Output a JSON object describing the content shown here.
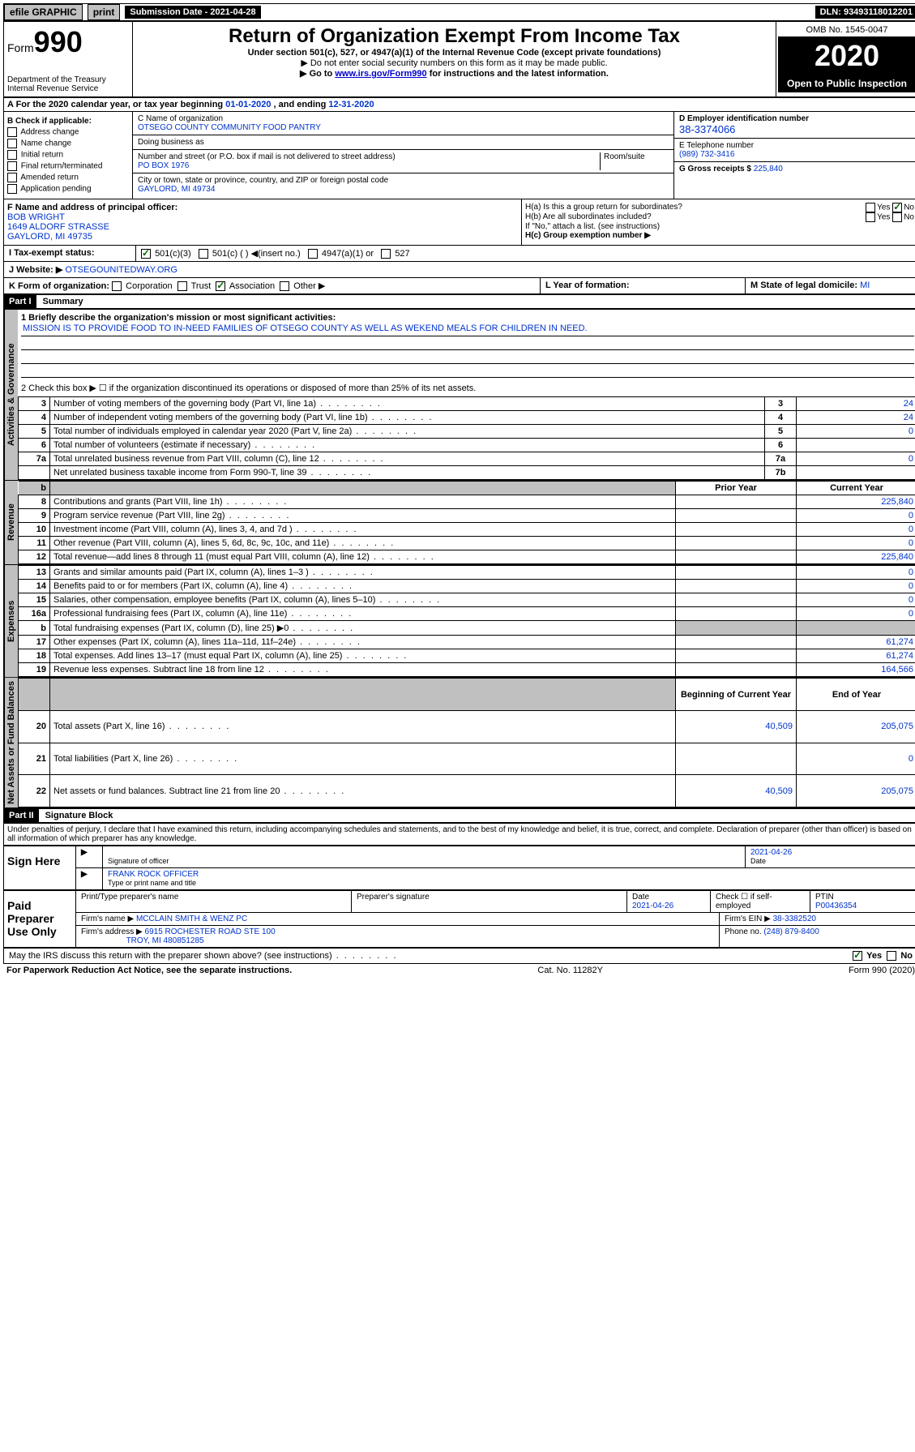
{
  "topbar": {
    "efile": "efile GRAPHIC",
    "print": "print",
    "submission": "Submission Date - 2021-04-28",
    "dln": "DLN: 93493118012201"
  },
  "header": {
    "form_prefix": "Form",
    "form_number": "990",
    "title": "Return of Organization Exempt From Income Tax",
    "subtitle": "Under section 501(c), 527, or 4947(a)(1) of the Internal Revenue Code (except private foundations)",
    "note1": "▶ Do not enter social security numbers on this form as it may be made public.",
    "note2_pre": "▶ Go to ",
    "note2_link": "www.irs.gov/Form990",
    "note2_post": " for instructions and the latest information.",
    "dept": "Department of the Treasury\nInternal Revenue Service",
    "omb": "OMB No. 1545-0047",
    "year": "2020",
    "open": "Open to Public Inspection"
  },
  "sectionA": {
    "text_pre": "A For the 2020 calendar year, or tax year beginning ",
    "begin": "01-01-2020",
    "mid": " , and ending ",
    "end": "12-31-2020"
  },
  "checkB": {
    "label": "B Check if applicable:",
    "items": [
      "Address change",
      "Name change",
      "Initial return",
      "Final return/terminated",
      "Amended return",
      "Application pending"
    ]
  },
  "blockC": {
    "name_label": "C Name of organization",
    "name": "OTSEGO COUNTY COMMUNITY FOOD PANTRY",
    "dba_label": "Doing business as",
    "dba": "",
    "street_label": "Number and street (or P.O. box if mail is not delivered to street address)",
    "room_label": "Room/suite",
    "street": "PO BOX 1976",
    "city_label": "City or town, state or province, country, and ZIP or foreign postal code",
    "city": "GAYLORD, MI 49734"
  },
  "blockD": {
    "label": "D Employer identification number",
    "ein": "38-3374066"
  },
  "blockE": {
    "label": "E Telephone number",
    "phone": "(989) 732-3416"
  },
  "blockG": {
    "label": "G Gross receipts $ ",
    "amount": "225,840"
  },
  "blockF": {
    "label": "F Name and address of principal officer:",
    "name": "BOB WRIGHT",
    "street": "1649 ALDORF STRASSE",
    "city": "GAYLORD, MI  49735"
  },
  "blockH": {
    "ha": "H(a)  Is this a group return for subordinates?",
    "hb": "H(b)  Are all subordinates included?",
    "hb_note": "If \"No,\" attach a list. (see instructions)",
    "hc": "H(c)  Group exemption number ▶",
    "yes": "Yes",
    "no": "No"
  },
  "rowI": {
    "label": "I  Tax-exempt status:",
    "opt1": "501(c)(3)",
    "opt2": "501(c) (  ) ◀(insert no.)",
    "opt3": "4947(a)(1) or",
    "opt4": "527"
  },
  "rowJ": {
    "label": "J  Website: ▶",
    "value": "OTSEGOUNITEDWAY.ORG"
  },
  "rowK": {
    "label": "K Form of organization:",
    "opts": [
      "Corporation",
      "Trust",
      "Association",
      "Other ▶"
    ],
    "checked_idx": 2
  },
  "rowL": {
    "label": "L Year of formation:",
    "value": ""
  },
  "rowM": {
    "label": "M State of legal domicile: ",
    "value": "MI"
  },
  "part1": {
    "header": "Part I",
    "title": "Summary",
    "line1_label": "1  Briefly describe the organization's mission or most significant activities:",
    "mission": "MISSION IS TO PROVIDE FOOD TO IN-NEED FAMILIES OF OTSEGO COUNTY AS WELL AS WEKEND MEALS FOR CHILDREN IN NEED.",
    "line2": "2  Check this box ▶ ☐  if the organization discontinued its operations or disposed of more than 25% of its net assets.",
    "rows_gov": [
      {
        "n": "3",
        "desc": "Number of voting members of the governing body (Part VI, line 1a)",
        "box": "3",
        "val": "24"
      },
      {
        "n": "4",
        "desc": "Number of independent voting members of the governing body (Part VI, line 1b)",
        "box": "4",
        "val": "24"
      },
      {
        "n": "5",
        "desc": "Total number of individuals employed in calendar year 2020 (Part V, line 2a)",
        "box": "5",
        "val": "0"
      },
      {
        "n": "6",
        "desc": "Total number of volunteers (estimate if necessary)",
        "box": "6",
        "val": ""
      },
      {
        "n": "7a",
        "desc": "Total unrelated business revenue from Part VIII, column (C), line 12",
        "box": "7a",
        "val": "0"
      },
      {
        "n": "",
        "desc": "Net unrelated business taxable income from Form 990-T, line 39",
        "box": "7b",
        "val": ""
      }
    ],
    "col_prior": "Prior Year",
    "col_current": "Current Year",
    "rows_rev": [
      {
        "n": "8",
        "desc": "Contributions and grants (Part VIII, line 1h)",
        "prior": "",
        "cur": "225,840"
      },
      {
        "n": "9",
        "desc": "Program service revenue (Part VIII, line 2g)",
        "prior": "",
        "cur": "0"
      },
      {
        "n": "10",
        "desc": "Investment income (Part VIII, column (A), lines 3, 4, and 7d )",
        "prior": "",
        "cur": "0"
      },
      {
        "n": "11",
        "desc": "Other revenue (Part VIII, column (A), lines 5, 6d, 8c, 9c, 10c, and 11e)",
        "prior": "",
        "cur": "0"
      },
      {
        "n": "12",
        "desc": "Total revenue—add lines 8 through 11 (must equal Part VIII, column (A), line 12)",
        "prior": "",
        "cur": "225,840"
      }
    ],
    "rows_exp": [
      {
        "n": "13",
        "desc": "Grants and similar amounts paid (Part IX, column (A), lines 1–3 )",
        "prior": "",
        "cur": "0"
      },
      {
        "n": "14",
        "desc": "Benefits paid to or for members (Part IX, column (A), line 4)",
        "prior": "",
        "cur": "0"
      },
      {
        "n": "15",
        "desc": "Salaries, other compensation, employee benefits (Part IX, column (A), lines 5–10)",
        "prior": "",
        "cur": "0"
      },
      {
        "n": "16a",
        "desc": "Professional fundraising fees (Part IX, column (A), line 11e)",
        "prior": "",
        "cur": "0"
      },
      {
        "n": "b",
        "desc": "Total fundraising expenses (Part IX, column (D), line 25) ▶0",
        "prior": "shaded",
        "cur": "shaded"
      },
      {
        "n": "17",
        "desc": "Other expenses (Part IX, column (A), lines 11a–11d, 11f–24e)",
        "prior": "",
        "cur": "61,274"
      },
      {
        "n": "18",
        "desc": "Total expenses. Add lines 13–17 (must equal Part IX, column (A), line 25)",
        "prior": "",
        "cur": "61,274"
      },
      {
        "n": "19",
        "desc": "Revenue less expenses. Subtract line 18 from line 12",
        "prior": "",
        "cur": "164,566"
      }
    ],
    "col_begin": "Beginning of Current Year",
    "col_end": "End of Year",
    "rows_net": [
      {
        "n": "20",
        "desc": "Total assets (Part X, line 16)",
        "prior": "40,509",
        "cur": "205,075"
      },
      {
        "n": "21",
        "desc": "Total liabilities (Part X, line 26)",
        "prior": "",
        "cur": "0"
      },
      {
        "n": "22",
        "desc": "Net assets or fund balances. Subtract line 21 from line 20",
        "prior": "40,509",
        "cur": "205,075"
      }
    ],
    "sidebar_gov": "Activities & Governance",
    "sidebar_rev": "Revenue",
    "sidebar_exp": "Expenses",
    "sidebar_net": "Net Assets or Fund Balances"
  },
  "part2": {
    "header": "Part II",
    "title": "Signature Block",
    "perjury": "Under penalties of perjury, I declare that I have examined this return, including accompanying schedules and statements, and to the best of my knowledge and belief, it is true, correct, and complete. Declaration of preparer (other than officer) is based on all information of which preparer has any knowledge."
  },
  "sign": {
    "left": "Sign Here",
    "sig_officer": "Signature of officer",
    "date": "2021-04-26",
    "date_label": "Date",
    "name": "FRANK ROCK  OFFICER",
    "name_label": "Type or print name and title"
  },
  "paid": {
    "left": "Paid Preparer Use Only",
    "h1": "Print/Type preparer's name",
    "h2": "Preparer's signature",
    "h3": "Date",
    "h3v": "2021-04-26",
    "h4": "Check ☐ if self-employed",
    "h5": "PTIN",
    "h5v": "P00436354",
    "firm_name_label": "Firm's name     ▶",
    "firm_name": "MCCLAIN SMITH & WENZ PC",
    "firm_ein_label": "Firm's EIN ▶",
    "firm_ein": "38-3382520",
    "firm_addr_label": "Firm's address ▶",
    "firm_addr1": "6915 ROCHESTER ROAD STE 100",
    "firm_addr2": "TROY, MI  480851285",
    "phone_label": "Phone no.",
    "phone": "(248) 879-8400"
  },
  "discuss": {
    "text": "May the IRS discuss this return with the preparer shown above? (see instructions)",
    "yes": "Yes",
    "no": "No"
  },
  "footer": {
    "left": "For Paperwork Reduction Act Notice, see the separate instructions.",
    "mid": "Cat. No. 11282Y",
    "right": "Form 990 (2020)"
  }
}
